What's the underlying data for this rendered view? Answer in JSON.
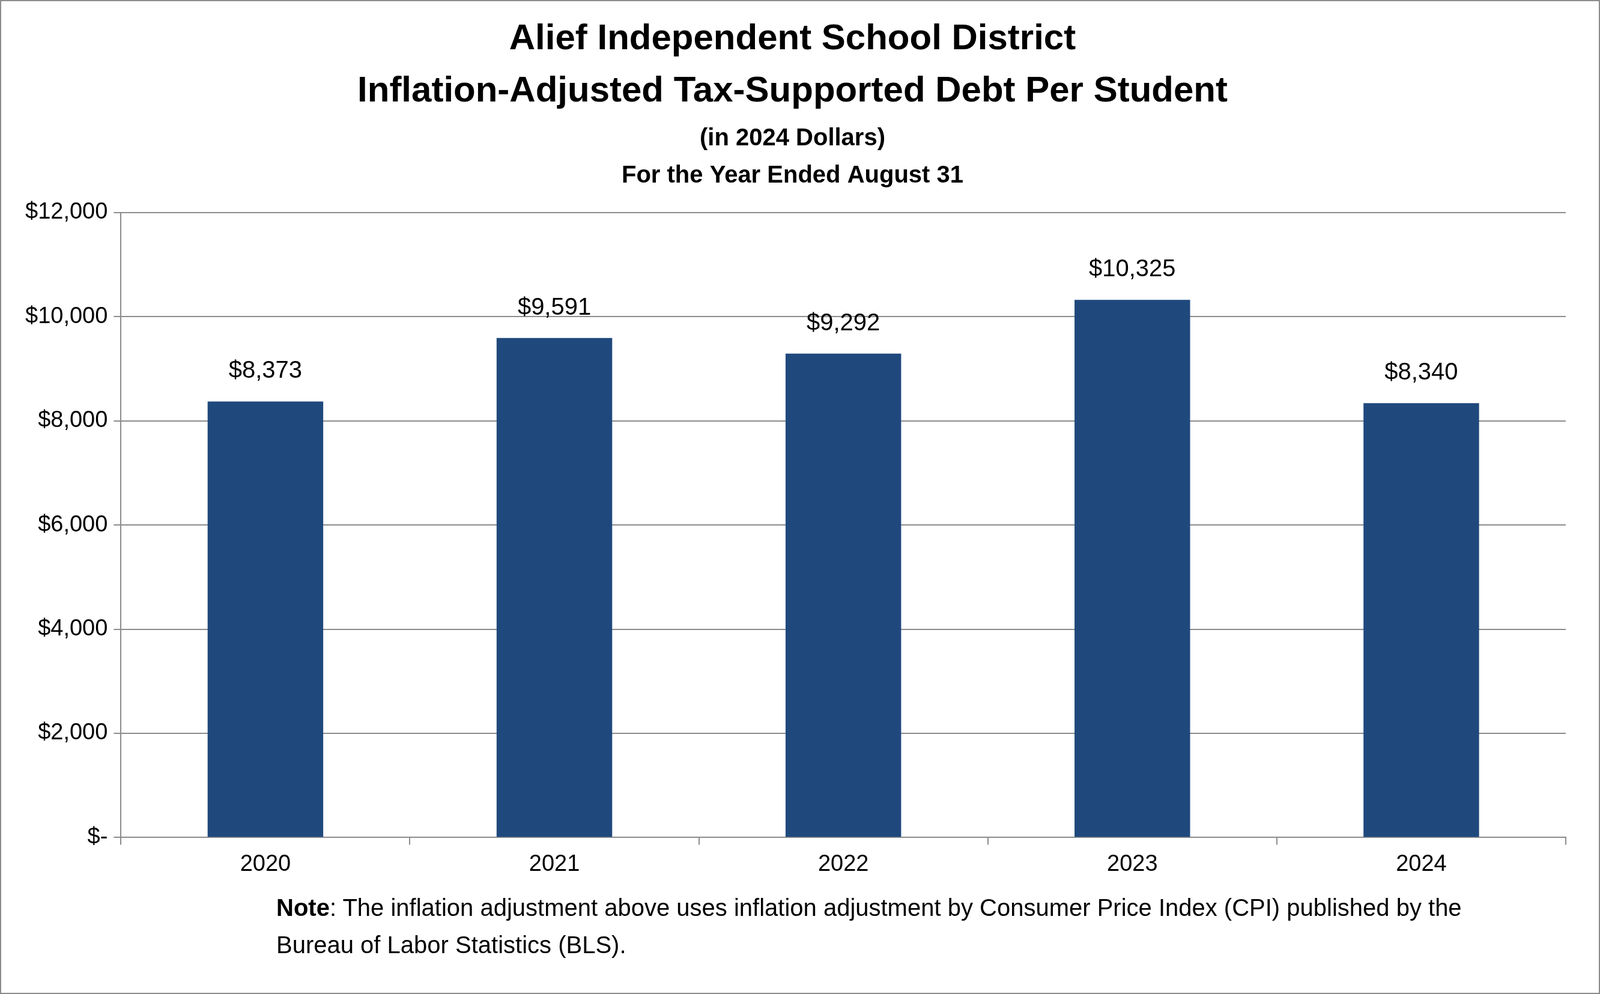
{
  "chart_data": {
    "type": "bar",
    "title": [
      "Alief Independent School District",
      "Inflation-Adjusted Tax-Supported Debt Per Student"
    ],
    "subtitle": [
      "(in 2024 Dollars)",
      "For the Year Ended August 31"
    ],
    "categories": [
      "2020",
      "2021",
      "2022",
      "2023",
      "2024"
    ],
    "values": [
      8373,
      9591,
      9292,
      10325,
      8340
    ],
    "value_labels": [
      "$8,373",
      "$9,591",
      "$9,292",
      "$10,325",
      "$8,340"
    ],
    "color": "#1f497d",
    "ylim": [
      0,
      12000
    ],
    "yticks": [
      {
        "value": 0,
        "label": "$-"
      },
      {
        "value": 2000,
        "label": "$2,000"
      },
      {
        "value": 4000,
        "label": "$4,000"
      },
      {
        "value": 6000,
        "label": "$6,000"
      },
      {
        "value": 8000,
        "label": "$8,000"
      },
      {
        "value": 10000,
        "label": "$10,000"
      },
      {
        "value": 12000,
        "label": "$12,000"
      }
    ],
    "grid": true,
    "data_labels": true,
    "note": {
      "label": "Note",
      "text": ": The inflation adjustment above uses inflation adjustment by Consumer Price Index (CPI) published by the Bureau of Labor Statistics (BLS)."
    }
  }
}
